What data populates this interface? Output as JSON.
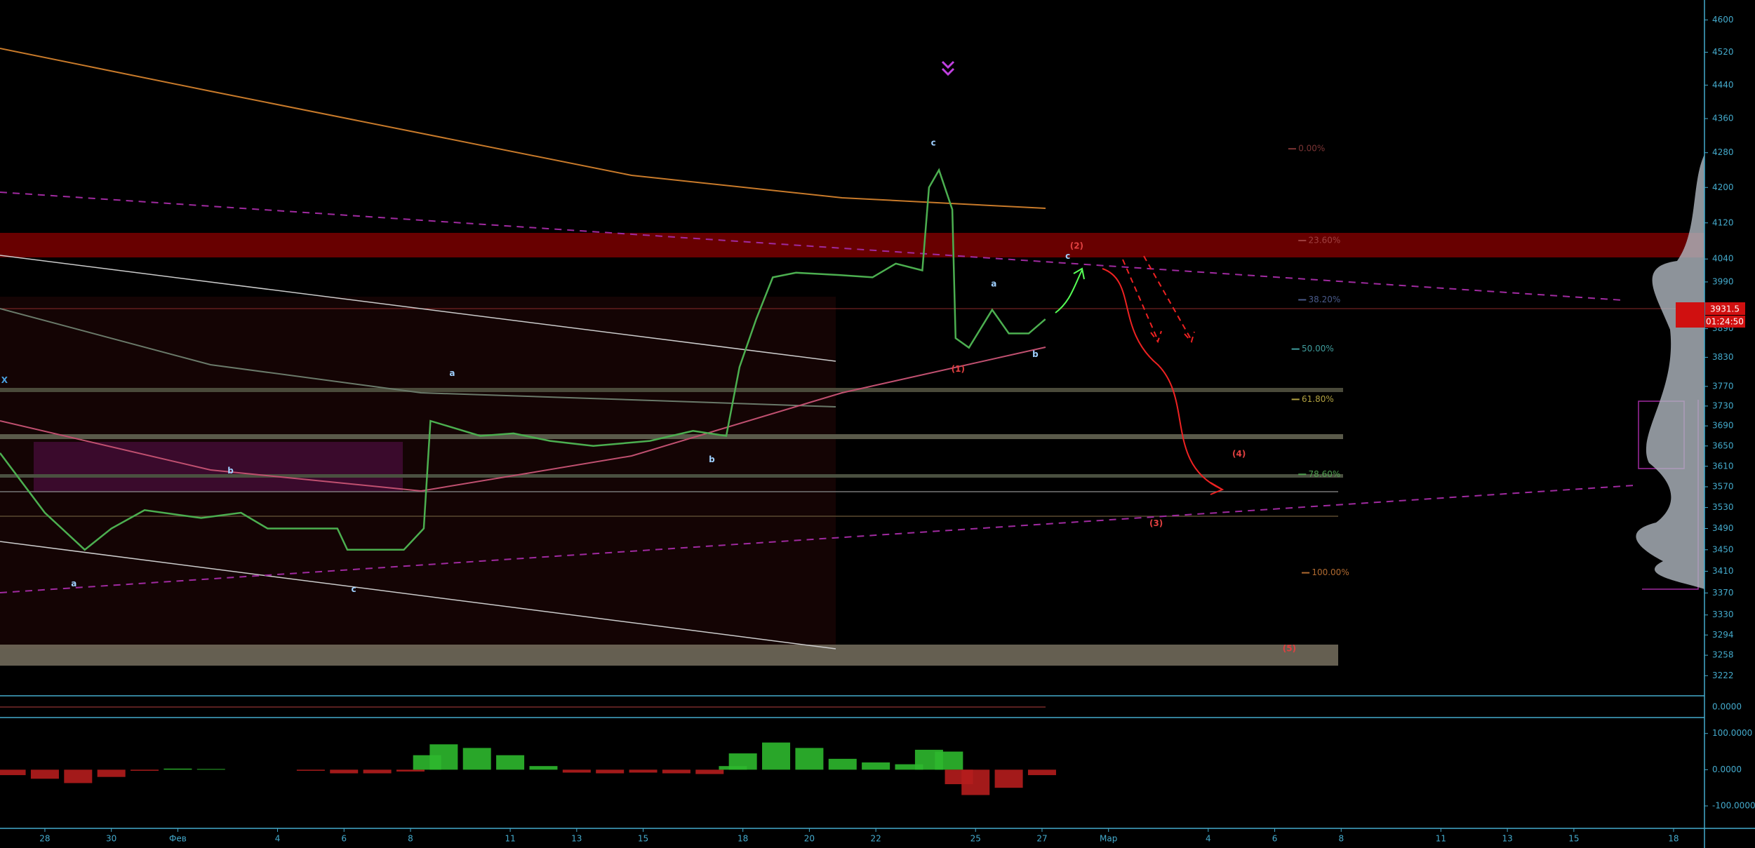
{
  "chart_data": [
    {
      "type": "line",
      "log_scale": true,
      "color": "#4caf50",
      "x": [
        -1.35,
        0,
        1.2,
        2,
        3,
        4.7,
        5.9,
        6.7,
        8.8,
        9.1,
        10.8,
        11.4,
        11.6,
        12.1,
        13.1,
        14.1,
        15.2,
        16.5,
        18.2,
        19.5,
        20.5,
        20.9,
        21.4,
        21.9,
        22.6,
        23.9,
        24.9,
        25.6,
        26.4,
        26.6,
        26.9,
        27.3,
        27.4,
        27.8,
        28.5,
        29.0,
        29.6,
        30.1
      ],
      "values": [
        3636,
        3520,
        3450,
        3490,
        3525,
        3510,
        3520,
        3490,
        3490,
        3450,
        3450,
        3490,
        3700,
        3690,
        3670,
        3675,
        3660,
        3650,
        3660,
        3680,
        3670,
        3810,
        3910,
        4000,
        4010,
        4005,
        4000,
        4030,
        4015,
        4200,
        4240,
        4150,
        3870,
        3850,
        3930,
        3880,
        3880,
        3910
      ],
      "xlim": [
        -1.35,
        49.93
      ],
      "ylim": [
        3187,
        4650
      ],
      "yticks": [
        4600,
        4520,
        4440,
        4360,
        4280,
        4200,
        4120,
        4040,
        3990,
        3890,
        3830,
        3770,
        3730,
        3690,
        3650,
        3610,
        3570,
        3530,
        3490,
        3450,
        3410,
        3370,
        3330,
        3294,
        3258,
        3222
      ],
      "xticks": [
        {
          "value": 0,
          "label": "28"
        },
        {
          "value": 2,
          "label": "30"
        },
        {
          "value": 4,
          "label": "Фев"
        },
        {
          "value": 7,
          "label": "4"
        },
        {
          "value": 9,
          "label": "6"
        },
        {
          "value": 11,
          "label": "8"
        },
        {
          "value": 14,
          "label": "11"
        },
        {
          "value": 16,
          "label": "13"
        },
        {
          "value": 18,
          "label": "15"
        },
        {
          "value": 21,
          "label": "18"
        },
        {
          "value": 23,
          "label": "20"
        },
        {
          "value": 25,
          "label": "22"
        },
        {
          "value": 28,
          "label": "25"
        },
        {
          "value": 30,
          "label": "27"
        },
        {
          "value": 32,
          "label": "Мар"
        },
        {
          "value": 35,
          "label": "4"
        },
        {
          "value": 37,
          "label": "6"
        },
        {
          "value": 39,
          "label": "8"
        },
        {
          "value": 42,
          "label": "11"
        },
        {
          "value": 44,
          "label": "13"
        },
        {
          "value": 46,
          "label": "15"
        },
        {
          "value": 49,
          "label": "18"
        }
      ],
      "price_label": "3931.5",
      "timer": "01:24:50",
      "fib_levels": [
        {
          "label": "0.00%",
          "color": "#7a3434"
        },
        {
          "label": "23.60%",
          "color": "#a04040"
        },
        {
          "label": "38.20%",
          "color": "#4a5a8a"
        },
        {
          "label": "50.00%",
          "color": "#3f9c9c"
        },
        {
          "label": "61.80%",
          "color": "#b0a040"
        },
        {
          "label": "78.60%",
          "color": "#4f9f4f"
        },
        {
          "label": "100.00%",
          "color": "#b06a30"
        }
      ],
      "annotations": [
        "c",
        "a",
        "b",
        "a",
        "c",
        "b",
        "a",
        "b",
        "c",
        "(2)",
        "(1)",
        "(3)",
        "(4)",
        "(5)",
        "X"
      ]
    },
    {
      "type": "bar",
      "x": [
        -1,
        0,
        1,
        2,
        3,
        4,
        5,
        6,
        7,
        8,
        9,
        10,
        11,
        11.5,
        12,
        13,
        14,
        15,
        16,
        17,
        18,
        19,
        20,
        20.7,
        21,
        22,
        23,
        24,
        25,
        26,
        26.6,
        27.2,
        27.5,
        28,
        29,
        30
      ],
      "values": [
        -15,
        -25,
        -37,
        -20,
        -3,
        3,
        2,
        0,
        0,
        -3,
        -10,
        -10,
        -5,
        40,
        70,
        60,
        40,
        10,
        -8,
        -10,
        -8,
        -10,
        -12,
        10,
        45,
        75,
        60,
        30,
        20,
        15,
        55,
        50,
        -40,
        -70,
        -50,
        -15
      ],
      "ylim": [
        -162,
        144
      ],
      "yticks": [
        {
          "value": 100,
          "label": "100.0000"
        },
        {
          "value": 0,
          "label": "0.0000"
        },
        {
          "value": -100,
          "label": "-100.0000"
        }
      ]
    },
    {
      "type": "volume",
      "yticks": [
        {
          "value": 0,
          "label": "0.0000"
        }
      ]
    }
  ]
}
